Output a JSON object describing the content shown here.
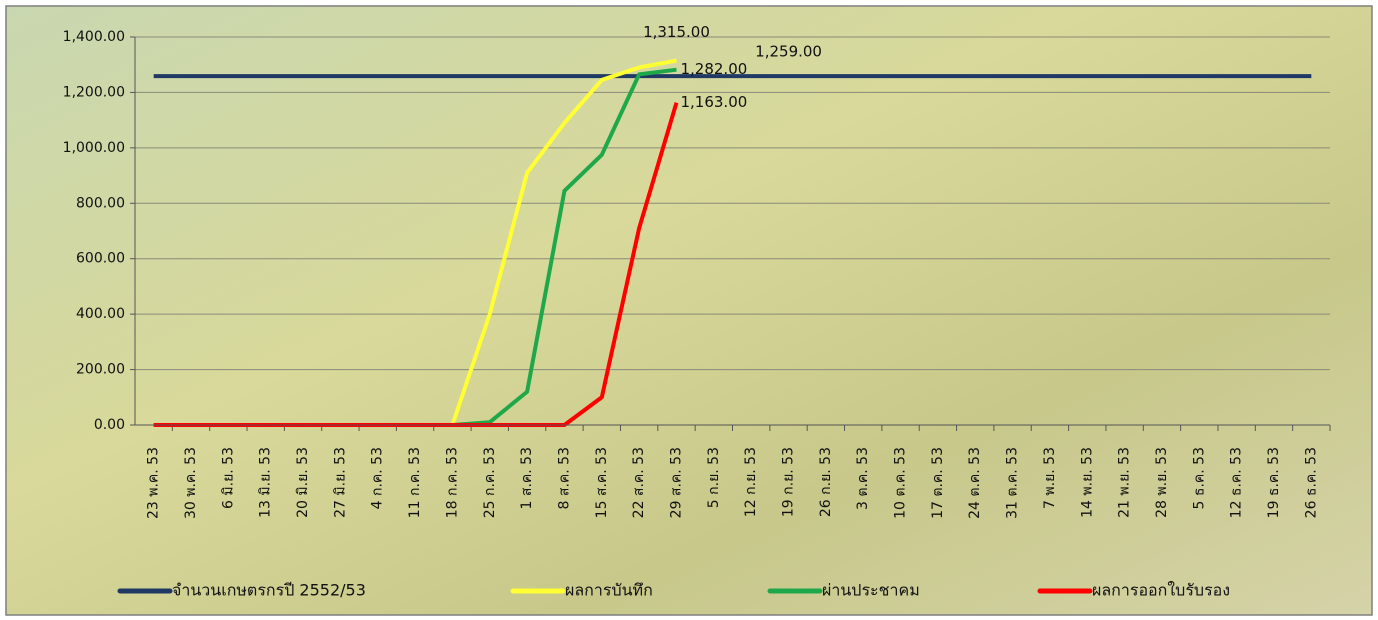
{
  "chart_data": {
    "type": "line",
    "categories": [
      "23 พ.ค. 53",
      "30 พ.ค. 53",
      "6 มิ.ย. 53",
      "13 มิ.ย. 53",
      "20 มิ.ย. 53",
      "27 มิ.ย. 53",
      "4 ก.ค. 53",
      "11 ก.ค. 53",
      "18 ก.ค. 53",
      "25 ก.ค. 53",
      "1 ส.ค. 53",
      "8 ส.ค. 53",
      "15 ส.ค. 53",
      "22 ส.ค. 53",
      "29 ส.ค. 53",
      "5 ก.ย. 53",
      "12 ก.ย. 53",
      "19 ก.ย. 53",
      "26 ก.ย. 53",
      "3 ต.ค. 53",
      "10 ต.ค. 53",
      "17 ต.ค. 53",
      "24 ต.ค. 53",
      "31 ต.ค. 53",
      "7 พ.ย. 53",
      "14 พ.ย. 53",
      "21 พ.ย. 53",
      "28 พ.ย. 53",
      "5 ธ.ค. 53",
      "12 ธ.ค. 53",
      "19 ธ.ค. 53",
      "26 ธ.ค. 53"
    ],
    "series": [
      {
        "name": "จำนวนเกษตรกรปี  2552/53",
        "color": "#1f3864",
        "label_color": "#1f3864",
        "values": [
          1259,
          1259,
          1259,
          1259,
          1259,
          1259,
          1259,
          1259,
          1259,
          1259,
          1259,
          1259,
          1259,
          1259,
          1259,
          1259,
          1259,
          1259,
          1259,
          1259,
          1259,
          1259,
          1259,
          1259,
          1259,
          1259,
          1259,
          1259,
          1259,
          1259,
          1259,
          1259
        ],
        "value_labels": [
          null,
          null,
          null,
          null,
          null,
          null,
          null,
          null,
          null,
          null,
          null,
          null,
          null,
          null,
          null,
          null,
          "1,259.00",
          null,
          null,
          null,
          null,
          null,
          null,
          null,
          null,
          null,
          null,
          null,
          null,
          null,
          null,
          null
        ]
      },
      {
        "name": "ผลการบันทึก",
        "color": "#ffff33",
        "label_color": "#111111",
        "values": [
          0,
          0,
          0,
          0,
          0,
          0,
          0,
          0,
          0,
          400,
          910,
          1090,
          1245,
          1290,
          1315,
          null,
          null,
          null,
          null,
          null,
          null,
          null,
          null,
          null,
          null,
          null,
          null,
          null,
          null,
          null,
          null,
          null
        ],
        "value_labels": [
          null,
          null,
          null,
          null,
          null,
          null,
          null,
          null,
          null,
          null,
          null,
          null,
          null,
          null,
          "1,315.00",
          null,
          null,
          null,
          null,
          null,
          null,
          null,
          null,
          null,
          null,
          null,
          null,
          null,
          null,
          null,
          null,
          null
        ]
      },
      {
        "name": "ผ่านประชาคม",
        "color": "#1fa84a",
        "label_color": "#1fa84a",
        "values": [
          0,
          0,
          0,
          0,
          0,
          0,
          0,
          0,
          0,
          10,
          120,
          845,
          975,
          1265,
          1282,
          null,
          null,
          null,
          null,
          null,
          null,
          null,
          null,
          null,
          null,
          null,
          null,
          null,
          null,
          null,
          null,
          null
        ],
        "value_labels": [
          null,
          null,
          null,
          null,
          null,
          null,
          null,
          null,
          null,
          null,
          null,
          null,
          null,
          null,
          "1,282.00",
          null,
          null,
          null,
          null,
          null,
          null,
          null,
          null,
          null,
          null,
          null,
          null,
          null,
          null,
          null,
          null,
          null
        ]
      },
      {
        "name": "ผลการออกใบรับรอง",
        "color": "#ff0000",
        "label_color": "#ff0000",
        "values": [
          0,
          0,
          0,
          0,
          0,
          0,
          0,
          0,
          0,
          0,
          0,
          0,
          100,
          710,
          1163,
          null,
          null,
          null,
          null,
          null,
          null,
          null,
          null,
          null,
          null,
          null,
          null,
          null,
          null,
          null,
          null,
          null
        ],
        "value_labels": [
          null,
          null,
          null,
          null,
          null,
          null,
          null,
          null,
          null,
          null,
          null,
          null,
          null,
          null,
          "1,163.00",
          null,
          null,
          null,
          null,
          null,
          null,
          null,
          null,
          null,
          null,
          null,
          null,
          null,
          null,
          null,
          null,
          null
        ]
      }
    ],
    "ylim": [
      0,
      1400
    ],
    "yticks": [
      {
        "value": 0,
        "label": "0.00"
      },
      {
        "value": 200,
        "label": "200.00"
      },
      {
        "value": 400,
        "label": "400.00"
      },
      {
        "value": 600,
        "label": "600.00"
      },
      {
        "value": 800,
        "label": "800.00"
      },
      {
        "value": 1000,
        "label": "1,000.00"
      },
      {
        "value": 1200,
        "label": "1,200.00"
      },
      {
        "value": 1400,
        "label": "1,400.00"
      }
    ],
    "grid": true,
    "legend": "bottom"
  }
}
